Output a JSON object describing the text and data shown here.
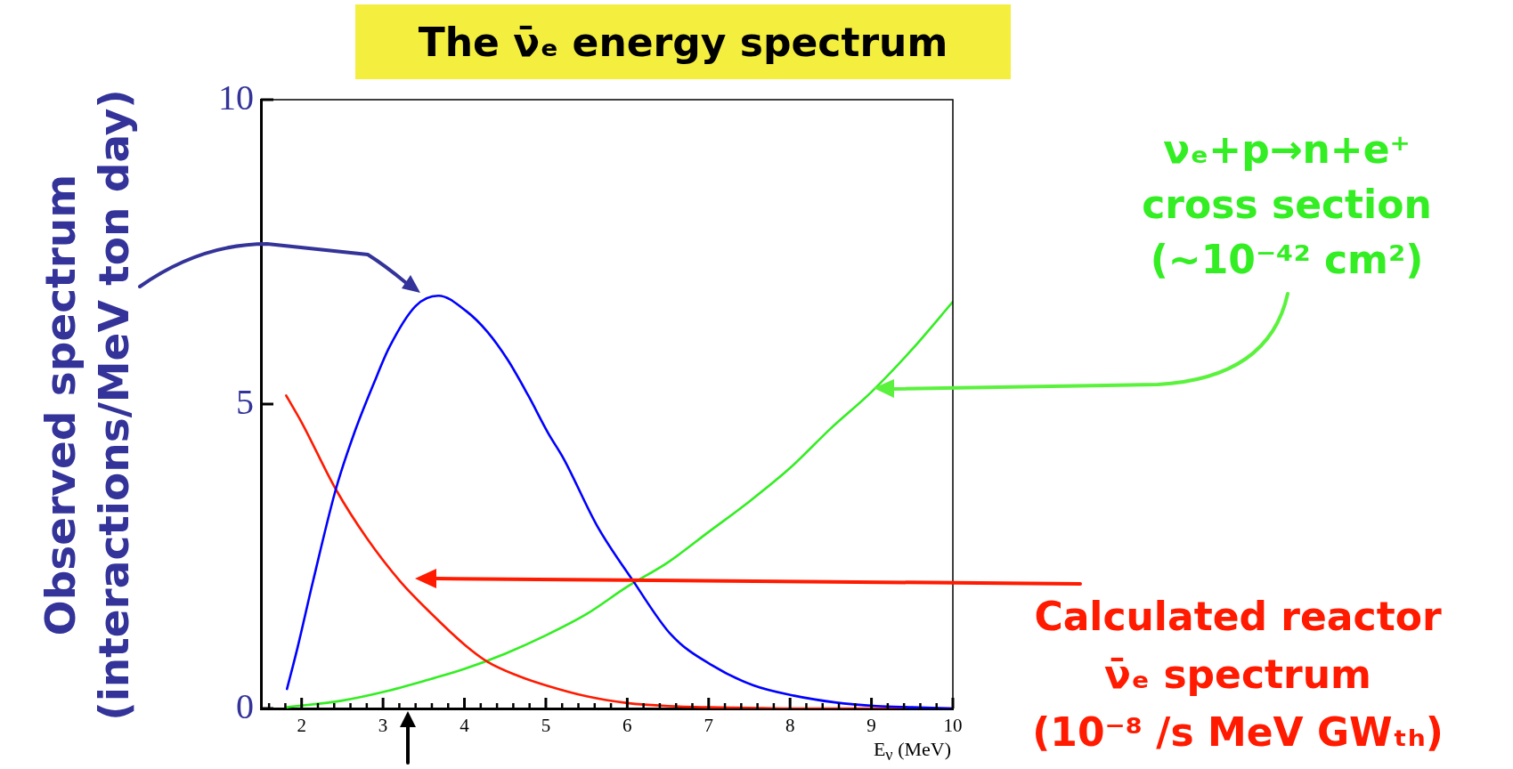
{
  "chart_data": {
    "type": "line",
    "title": "The ν̄ₑ energy spectrum",
    "xlabel": "E$_{ν}$ (MeV)",
    "ylabel": "Observed spectrum\n(interactions/MeV ton day)",
    "xlim": [
      1.5,
      10
    ],
    "ylim": [
      0,
      10
    ],
    "xticks": [
      {
        "value": 1.6,
        "label": null
      },
      {
        "value": 1.8,
        "label": null
      },
      2,
      {
        "value": 2.2,
        "label": null
      },
      {
        "value": 2.4,
        "label": null
      },
      {
        "value": 2.6,
        "label": null
      },
      {
        "value": 2.8,
        "label": null
      },
      3,
      {
        "value": 3.2,
        "label": null
      },
      {
        "value": 3.4,
        "label": null
      },
      {
        "value": 3.6,
        "label": null
      },
      {
        "value": 3.8,
        "label": null
      },
      4,
      {
        "value": 4.2,
        "label": null
      },
      {
        "value": 4.4,
        "label": null
      },
      {
        "value": 4.6,
        "label": null
      },
      {
        "value": 4.8,
        "label": null
      },
      5,
      {
        "value": 5.2,
        "label": null
      },
      {
        "value": 5.4,
        "label": null
      },
      {
        "value": 5.6,
        "label": null
      },
      {
        "value": 5.8,
        "label": null
      },
      6,
      {
        "value": 6.2,
        "label": null
      },
      {
        "value": 6.4,
        "label": null
      },
      {
        "value": 6.6,
        "label": null
      },
      {
        "value": 6.8,
        "label": null
      },
      7,
      {
        "value": 7.2,
        "label": null
      },
      {
        "value": 7.4,
        "label": null
      },
      {
        "value": 7.6,
        "label": null
      },
      {
        "value": 7.8,
        "label": null
      },
      8,
      {
        "value": 8.2,
        "label": null
      },
      {
        "value": 8.4,
        "label": null
      },
      {
        "value": 8.6,
        "label": null
      },
      {
        "value": 8.8,
        "label": null
      },
      9,
      {
        "value": 9.2,
        "label": null
      },
      {
        "value": 9.4,
        "label": null
      },
      {
        "value": 9.6,
        "label": null
      },
      {
        "value": 9.8,
        "label": null
      },
      10
    ],
    "yticks": [
      0,
      5,
      10
    ],
    "line_style": "solid",
    "series": [
      {
        "color": "#0000ff",
        "x": [
          1.82,
          1.95,
          2.14,
          2.42,
          2.64,
          2.89,
          3.08,
          3.4,
          3.68,
          4.02,
          4.28,
          4.53,
          4.78,
          5.03,
          5.22,
          5.63,
          6.07,
          6.54,
          7.04,
          7.55,
          8.05,
          8.55,
          9.06,
          9.5,
          10
        ],
        "values": [
          0.32,
          1.0,
          2.09,
          3.6,
          4.5,
          5.35,
          5.94,
          6.61,
          6.78,
          6.53,
          6.19,
          5.73,
          5.15,
          4.52,
          4.1,
          3.0,
          2.1,
          1.21,
          0.71,
          0.38,
          0.21,
          0.1,
          0.04,
          0.02,
          0.0
        ]
      },
      {
        "name": "Calculated reactor\nν̄ₑ spectrum\n(10⁻⁸ /s MeV GWₜₕ)",
        "color": "#ff1a00",
        "x": [
          1.81,
          2.0,
          2.42,
          2.8,
          3.21,
          3.6,
          4.0,
          4.28,
          4.65,
          5.0,
          5.5,
          6.0,
          6.5,
          7.0,
          7.5,
          8.0,
          9.0,
          10.0
        ],
        "values": [
          5.14,
          4.7,
          3.6,
          2.8,
          2.09,
          1.55,
          1.05,
          0.77,
          0.54,
          0.38,
          0.2,
          0.09,
          0.04,
          0.02,
          0.01,
          0.0,
          0.0,
          0.0
        ]
      },
      {
        "name": "νₑ+p→n+e⁺\ncross section\n(~10⁻⁴² cm²)",
        "color": "#33ee22",
        "x": [
          1.82,
          2.5,
          3.0,
          3.5,
          4.0,
          4.5,
          5.0,
          5.5,
          6.0,
          6.5,
          7.0,
          7.5,
          8.0,
          8.5,
          9.0,
          9.5,
          10.0
        ],
        "values": [
          0.02,
          0.13,
          0.27,
          0.45,
          0.65,
          0.9,
          1.2,
          1.55,
          2.0,
          2.4,
          2.9,
          3.4,
          3.95,
          4.6,
          5.2,
          5.9,
          6.68
        ]
      }
    ]
  }
}
